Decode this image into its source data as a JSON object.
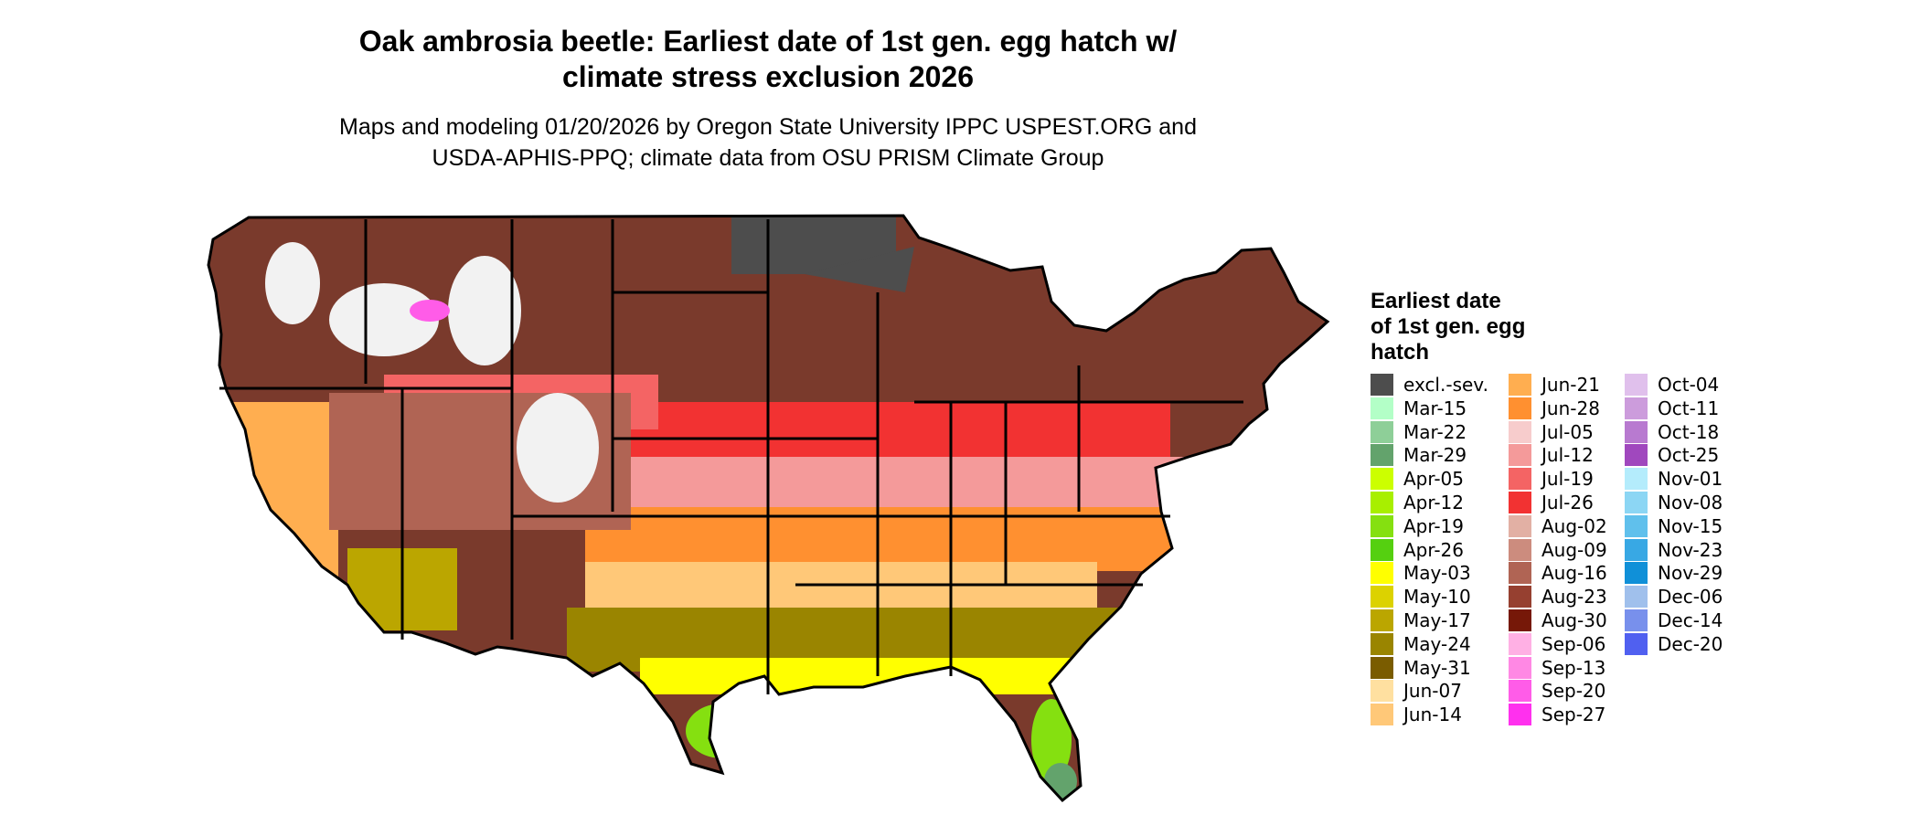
{
  "header": {
    "title_line1": "Oak ambrosia beetle: Earliest date of 1st gen. egg hatch w/",
    "title_line2": "climate stress exclusion 2026",
    "subtitle_line1": "Maps and modeling 01/20/2026 by Oregon State University IPPC USPEST.ORG and",
    "subtitle_line2": "USDA-APHIS-PPQ; climate data from OSU PRISM Climate Group"
  },
  "legend": {
    "title_line1": "Earliest date",
    "title_line2": "of 1st gen. egg",
    "title_line3": "hatch",
    "columns": [
      [
        {
          "label": "excl.-sev.",
          "color": "#4d4d4d"
        },
        {
          "label": "Mar-15",
          "color": "#b3ffc7"
        },
        {
          "label": "Mar-22",
          "color": "#8ecf98"
        },
        {
          "label": "Mar-29",
          "color": "#63a36c"
        },
        {
          "label": "Apr-05",
          "color": "#ccff00"
        },
        {
          "label": "Apr-12",
          "color": "#a8ef00"
        },
        {
          "label": "Apr-19",
          "color": "#85e010"
        },
        {
          "label": "Apr-26",
          "color": "#55d010"
        },
        {
          "label": "May-03",
          "color": "#ffff00"
        },
        {
          "label": "May-10",
          "color": "#dcd200"
        },
        {
          "label": "May-17",
          "color": "#bba600"
        },
        {
          "label": "May-24",
          "color": "#9a8500"
        },
        {
          "label": "May-31",
          "color": "#7a5c00"
        },
        {
          "label": "Jun-07",
          "color": "#ffe0a0"
        },
        {
          "label": "Jun-14",
          "color": "#ffc878"
        }
      ],
      [
        {
          "label": "Jun-21",
          "color": "#ffae50"
        },
        {
          "label": "Jun-28",
          "color": "#ff9030"
        },
        {
          "label": "Jul-05",
          "color": "#f7cccc"
        },
        {
          "label": "Jul-12",
          "color": "#f49a9a"
        },
        {
          "label": "Jul-19",
          "color": "#f46464"
        },
        {
          "label": "Jul-26",
          "color": "#f23232"
        },
        {
          "label": "Aug-02",
          "color": "#e2b0a4"
        },
        {
          "label": "Aug-09",
          "color": "#cc8c7e"
        },
        {
          "label": "Aug-16",
          "color": "#b06454"
        },
        {
          "label": "Aug-23",
          "color": "#964030"
        },
        {
          "label": "Aug-30",
          "color": "#761808"
        },
        {
          "label": "Sep-06",
          "color": "#ffb0e4"
        },
        {
          "label": "Sep-13",
          "color": "#ff88e4"
        },
        {
          "label": "Sep-20",
          "color": "#ff5ce8"
        },
        {
          "label": "Sep-27",
          "color": "#ff30ee"
        }
      ],
      [
        {
          "label": "Oct-04",
          "color": "#e0c0ec"
        },
        {
          "label": "Oct-11",
          "color": "#cc9cdc"
        },
        {
          "label": "Oct-18",
          "color": "#b87ad0"
        },
        {
          "label": "Oct-25",
          "color": "#a048be"
        },
        {
          "label": "Nov-01",
          "color": "#b4ecfc"
        },
        {
          "label": "Nov-08",
          "color": "#8cd6f4"
        },
        {
          "label": "Nov-15",
          "color": "#60c0ec"
        },
        {
          "label": "Nov-23",
          "color": "#38a8e4"
        },
        {
          "label": "Nov-29",
          "color": "#1090d8"
        },
        {
          "label": "Dec-06",
          "color": "#a0c0ec"
        },
        {
          "label": "Dec-14",
          "color": "#7890ec"
        },
        {
          "label": "Dec-20",
          "color": "#5060f0"
        }
      ]
    ]
  },
  "map": {
    "regions": [
      {
        "color": "#7a3a2c"
      },
      {
        "color": "#f23232"
      },
      {
        "color": "#f49a9a"
      },
      {
        "color": "#f46464"
      },
      {
        "color": "#ff9030"
      },
      {
        "color": "#ffc878"
      },
      {
        "color": "#9a8500"
      },
      {
        "color": "#ffff00"
      },
      {
        "color": "#85e010"
      },
      {
        "color": "#63a36c"
      },
      {
        "color": "#4d4d4d"
      },
      {
        "color": "#f2f2f2"
      },
      {
        "color": "#ff5ce8"
      },
      {
        "color": "#b06454"
      },
      {
        "color": "#ffae50"
      },
      {
        "color": "#bba600"
      }
    ]
  }
}
